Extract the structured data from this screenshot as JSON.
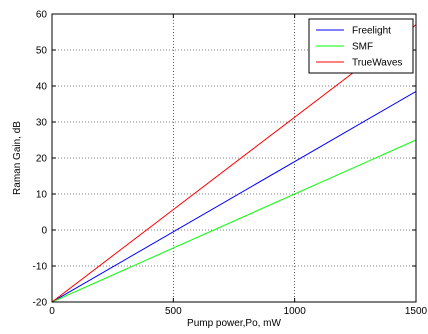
{
  "chart_data": {
    "type": "line",
    "title": "",
    "xlabel": "Pump power,Po, mW",
    "ylabel": "Raman Gain, dB",
    "xlim": [
      0,
      1500
    ],
    "ylim": [
      -20,
      60
    ],
    "xticks": [
      0,
      500,
      1000,
      1500
    ],
    "yticks": [
      -20,
      -10,
      0,
      10,
      20,
      30,
      40,
      50,
      60
    ],
    "grid": true,
    "legend_position": "top-right",
    "series": [
      {
        "name": "Freelight",
        "color": "#0000ff",
        "x": [
          0,
          1500
        ],
        "y": [
          -20,
          38.5
        ]
      },
      {
        "name": "SMF",
        "color": "#00ff00",
        "x": [
          0,
          1500
        ],
        "y": [
          -20,
          25
        ]
      },
      {
        "name": "TrueWaves",
        "color": "#ff0000",
        "x": [
          0,
          1500
        ],
        "y": [
          -20,
          57
        ]
      }
    ]
  }
}
